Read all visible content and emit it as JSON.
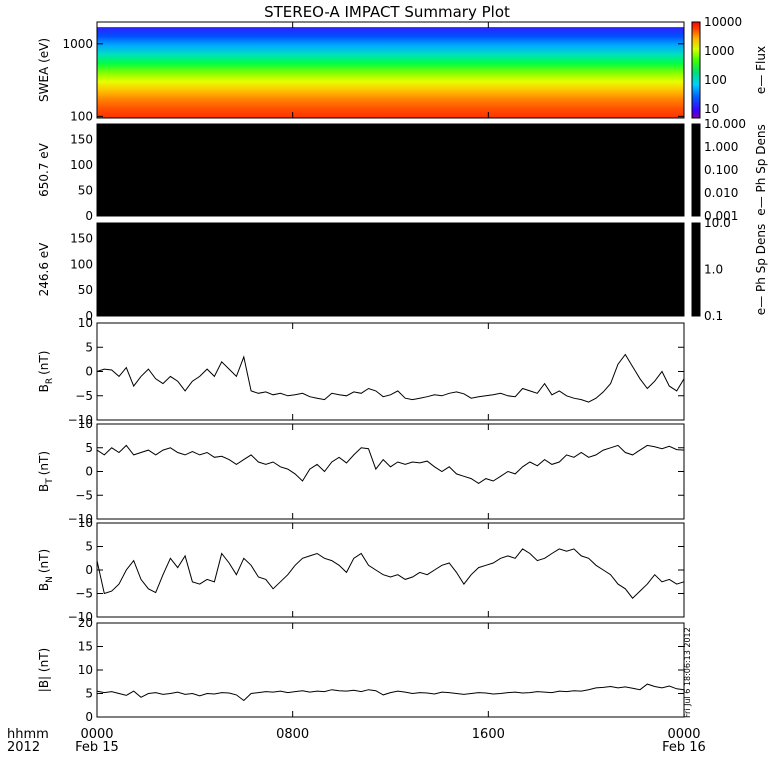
{
  "title": "STEREO-A IMPACT Summary Plot",
  "stamp": "Fri Jul  6 18:06:13 2012",
  "time_axis": {
    "row1_label": "hhmm",
    "row2_label": "2012",
    "ticks": [
      {
        "t": 0,
        "label": "0000",
        "sub": "Feb 15"
      },
      {
        "t": 8,
        "label": "0800",
        "sub": ""
      },
      {
        "t": 16,
        "label": "1600",
        "sub": ""
      },
      {
        "t": 24,
        "label": "0000",
        "sub": "Feb 16"
      }
    ],
    "range": [
      0,
      24
    ]
  },
  "chart_data": [
    {
      "type": "heatmap",
      "ylabel": "SWEA (eV)",
      "ylog": true,
      "ylim": [
        95,
        2000
      ],
      "yticks": [
        100,
        1000
      ],
      "ytick_labels": [
        "100",
        "1000"
      ],
      "colorbar": {
        "label": "e— Flux",
        "scale": "log",
        "range": [
          5,
          10000
        ],
        "ticks": [
          10,
          100,
          1000,
          10000
        ],
        "tick_labels": [
          "10",
          "100",
          "1000",
          "10000"
        ],
        "colormap": "rainbow"
      },
      "band_upper_eV": 1700
    },
    {
      "type": "heatmap",
      "ylabel": "650.7 eV",
      "ylim": [
        0,
        180
      ],
      "yticks": [
        0,
        50,
        100,
        150
      ],
      "ytick_labels": [
        "0",
        "50",
        "100",
        "150"
      ],
      "fill_color": "#000000",
      "colorbar": {
        "label": "e— Ph Sp Dens",
        "scale": "log",
        "range": [
          0.001,
          10
        ],
        "ticks": [
          0.001,
          0.01,
          0.1,
          1,
          10
        ],
        "tick_labels": [
          "0.001",
          "0.010",
          "0.100",
          "1.000",
          "10.000"
        ]
      }
    },
    {
      "type": "heatmap",
      "ylabel": "246.6 eV",
      "ylim": [
        0,
        180
      ],
      "yticks": [
        0,
        50,
        100,
        150
      ],
      "ytick_labels": [
        "0",
        "50",
        "100",
        "150"
      ],
      "fill_color": "#000000",
      "colorbar": {
        "label": "e— Ph Sp Dens",
        "scale": "log",
        "range": [
          0.1,
          10
        ],
        "ticks": [
          0.1,
          1,
          10
        ],
        "tick_labels": [
          "0.1",
          "1.0",
          "10.0"
        ]
      }
    },
    {
      "type": "line",
      "ylabel": "B",
      "ylabel_sub": "R",
      "ylabel_unit": "(nT)",
      "ylim": [
        -10,
        10
      ],
      "yticks": [
        -10,
        -5,
        0,
        5,
        10
      ],
      "ytick_labels": [
        "−10",
        "−5",
        "0",
        "5",
        "10"
      ],
      "x": [
        0,
        0.3,
        0.6,
        0.9,
        1.2,
        1.5,
        1.8,
        2.1,
        2.4,
        2.7,
        3.0,
        3.3,
        3.6,
        3.9,
        4.2,
        4.5,
        4.8,
        5.1,
        5.4,
        5.7,
        6.0,
        6.3,
        6.6,
        6.9,
        7.2,
        7.5,
        7.8,
        8.1,
        8.4,
        8.7,
        9.0,
        9.3,
        9.6,
        9.9,
        10.2,
        10.5,
        10.8,
        11.1,
        11.4,
        11.7,
        12.0,
        12.3,
        12.6,
        12.9,
        13.2,
        13.5,
        13.8,
        14.1,
        14.4,
        14.7,
        15.0,
        15.3,
        15.6,
        15.9,
        16.2,
        16.5,
        16.8,
        17.1,
        17.4,
        17.7,
        18.0,
        18.3,
        18.6,
        18.9,
        19.2,
        19.5,
        19.8,
        20.1,
        20.4,
        20.7,
        21.0,
        21.3,
        21.6,
        21.9,
        22.2,
        22.5,
        22.8,
        23.1,
        23.4,
        23.7,
        24.0
      ],
      "y": [
        0,
        0.5,
        0.3,
        -1,
        0.8,
        -3,
        -1,
        0.5,
        -1.5,
        -2.5,
        -1,
        -2,
        -4,
        -2,
        -1,
        0.5,
        -1,
        2,
        0.5,
        -1,
        3,
        -4,
        -4.5,
        -4.2,
        -4.8,
        -4.5,
        -5,
        -4.8,
        -4.5,
        -5.2,
        -5.5,
        -5.8,
        -4.5,
        -4.8,
        -5,
        -4.2,
        -4.5,
        -3.5,
        -4,
        -5.2,
        -4.8,
        -4,
        -5.5,
        -5.8,
        -5.5,
        -5.2,
        -4.8,
        -5,
        -4.5,
        -4.2,
        -4.6,
        -5.5,
        -5.2,
        -5,
        -4.8,
        -4.5,
        -5,
        -5.2,
        -3.5,
        -4,
        -4.5,
        -2.5,
        -4.8,
        -4,
        -5,
        -5.5,
        -5.8,
        -6.3,
        -5.5,
        -4.2,
        -2.5,
        1.5,
        3.5,
        1,
        -1.5,
        -3.5,
        -2,
        0,
        -3,
        -4,
        -1.5
      ]
    },
    {
      "type": "line",
      "ylabel": "B",
      "ylabel_sub": "T",
      "ylabel_unit": "(nT)",
      "ylim": [
        -10,
        10
      ],
      "yticks": [
        -10,
        -5,
        0,
        5,
        10
      ],
      "ytick_labels": [
        "−10",
        "−5",
        "0",
        "5",
        "10"
      ],
      "x": [
        0,
        0.3,
        0.6,
        0.9,
        1.2,
        1.5,
        1.8,
        2.1,
        2.4,
        2.7,
        3.0,
        3.3,
        3.6,
        3.9,
        4.2,
        4.5,
        4.8,
        5.1,
        5.4,
        5.7,
        6.0,
        6.3,
        6.6,
        6.9,
        7.2,
        7.5,
        7.8,
        8.1,
        8.4,
        8.7,
        9.0,
        9.3,
        9.6,
        9.9,
        10.2,
        10.5,
        10.8,
        11.1,
        11.4,
        11.7,
        12.0,
        12.3,
        12.6,
        12.9,
        13.2,
        13.5,
        13.8,
        14.1,
        14.4,
        14.7,
        15.0,
        15.3,
        15.6,
        15.9,
        16.2,
        16.5,
        16.8,
        17.1,
        17.4,
        17.7,
        18.0,
        18.3,
        18.6,
        18.9,
        19.2,
        19.5,
        19.8,
        20.1,
        20.4,
        20.7,
        21.0,
        21.3,
        21.6,
        21.9,
        22.2,
        22.5,
        22.8,
        23.1,
        23.4,
        23.7,
        24.0
      ],
      "y": [
        4.5,
        3.5,
        5,
        4,
        5.5,
        3.5,
        4,
        4.5,
        3.5,
        4.5,
        5,
        4,
        3.5,
        4.2,
        3.5,
        4,
        3,
        3.2,
        2.5,
        1.5,
        2.5,
        3.5,
        2,
        1.5,
        2,
        1,
        0.5,
        -0.5,
        -2,
        0.5,
        1.5,
        0,
        2,
        3,
        1.8,
        3.5,
        5,
        4.8,
        0.5,
        2.5,
        1,
        2,
        1.5,
        2,
        1.8,
        2.2,
        1,
        0,
        1,
        -0.5,
        -1,
        -1.5,
        -2.5,
        -1.5,
        -2,
        -1,
        0,
        -0.5,
        1,
        2,
        1.2,
        2.5,
        1.5,
        2,
        3.5,
        3,
        4,
        3,
        3.5,
        4.5,
        5,
        5.5,
        4,
        3.5,
        4.5,
        5.5,
        5.2,
        4.8,
        5.3,
        4.6,
        4.5
      ]
    },
    {
      "type": "line",
      "ylabel": "B",
      "ylabel_sub": "N",
      "ylabel_unit": "(nT)",
      "ylim": [
        -10,
        10
      ],
      "yticks": [
        -10,
        -5,
        0,
        5,
        10
      ],
      "ytick_labels": [
        "−10",
        "−5",
        "0",
        "5",
        "10"
      ],
      "x": [
        0,
        0.3,
        0.6,
        0.9,
        1.2,
        1.5,
        1.8,
        2.1,
        2.4,
        2.7,
        3.0,
        3.3,
        3.6,
        3.9,
        4.2,
        4.5,
        4.8,
        5.1,
        5.4,
        5.7,
        6.0,
        6.3,
        6.6,
        6.9,
        7.2,
        7.5,
        7.8,
        8.1,
        8.4,
        8.7,
        9.0,
        9.3,
        9.6,
        9.9,
        10.2,
        10.5,
        10.8,
        11.1,
        11.4,
        11.7,
        12.0,
        12.3,
        12.6,
        12.9,
        13.2,
        13.5,
        13.8,
        14.1,
        14.4,
        14.7,
        15.0,
        15.3,
        15.6,
        15.9,
        16.2,
        16.5,
        16.8,
        17.1,
        17.4,
        17.7,
        18.0,
        18.3,
        18.6,
        18.9,
        19.2,
        19.5,
        19.8,
        20.1,
        20.4,
        20.7,
        21.0,
        21.3,
        21.6,
        21.9,
        22.2,
        22.5,
        22.8,
        23.1,
        23.4,
        23.7,
        24.0
      ],
      "y": [
        2,
        -5,
        -4.5,
        -3,
        0,
        2,
        -2,
        -4,
        -4.8,
        -1,
        2.5,
        0.5,
        3,
        -2.5,
        -3,
        -2,
        -2.5,
        3.5,
        1.5,
        -1,
        2.5,
        1,
        -1.5,
        -2,
        -4,
        -2.5,
        -1,
        1,
        2.5,
        3,
        3.5,
        2.5,
        2,
        1,
        -0.5,
        2.5,
        3.5,
        1,
        0,
        -1,
        -1.5,
        -1,
        -2,
        -1.5,
        -0.5,
        -1,
        0,
        1,
        1.5,
        -0.5,
        -3,
        -1,
        0.5,
        1,
        1.5,
        2.5,
        3,
        2.5,
        4.5,
        3.5,
        2,
        2.5,
        3.5,
        4.5,
        4,
        4.5,
        3,
        2.5,
        1,
        0,
        -1,
        -3,
        -4,
        -6,
        -4.5,
        -3,
        -1,
        -2.5,
        -2,
        -3,
        -2.5
      ]
    },
    {
      "type": "line",
      "ylabel": "|B| (nT)",
      "ylim": [
        0,
        20
      ],
      "yticks": [
        0,
        5,
        10,
        15,
        20
      ],
      "ytick_labels": [
        "0",
        "5",
        "10",
        "15",
        "20"
      ],
      "x": [
        0,
        0.3,
        0.6,
        0.9,
        1.2,
        1.5,
        1.8,
        2.1,
        2.4,
        2.7,
        3.0,
        3.3,
        3.6,
        3.9,
        4.2,
        4.5,
        4.8,
        5.1,
        5.4,
        5.7,
        6.0,
        6.3,
        6.6,
        6.9,
        7.2,
        7.5,
        7.8,
        8.1,
        8.4,
        8.7,
        9.0,
        9.3,
        9.6,
        9.9,
        10.2,
        10.5,
        10.8,
        11.1,
        11.4,
        11.7,
        12.0,
        12.3,
        12.6,
        12.9,
        13.2,
        13.5,
        13.8,
        14.1,
        14.4,
        14.7,
        15.0,
        15.3,
        15.6,
        15.9,
        16.2,
        16.5,
        16.8,
        17.1,
        17.4,
        17.7,
        18.0,
        18.3,
        18.6,
        18.9,
        19.2,
        19.5,
        19.8,
        20.1,
        20.4,
        20.7,
        21.0,
        21.3,
        21.6,
        21.9,
        22.2,
        22.5,
        22.8,
        23.1,
        23.4,
        23.7,
        24.0
      ],
      "y": [
        5.5,
        5.2,
        5.4,
        5,
        4.6,
        5.5,
        4.2,
        5,
        5.2,
        4.8,
        5,
        5.3,
        4.8,
        5,
        4.5,
        5,
        4.9,
        5.2,
        5.1,
        4.7,
        3.5,
        5,
        5.2,
        5.4,
        5.3,
        5.5,
        5.2,
        5.4,
        5.6,
        5.3,
        5.5,
        5.4,
        5.8,
        5.6,
        5.5,
        5.7,
        5.4,
        5.8,
        5.6,
        4.7,
        5.2,
        5.5,
        5.3,
        5,
        5.2,
        5.1,
        4.9,
        5.3,
        5.2,
        5,
        4.8,
        5,
        5.2,
        5.1,
        4.9,
        5,
        5.2,
        5.3,
        5.1,
        5.2,
        5.4,
        5.3,
        5.2,
        5.5,
        5.4,
        5.6,
        5.5,
        5.8,
        6.2,
        6.3,
        6.5,
        6.2,
        6.4,
        6.1,
        5.8,
        7,
        6.5,
        6.2,
        6.6,
        6,
        5.8
      ]
    }
  ]
}
